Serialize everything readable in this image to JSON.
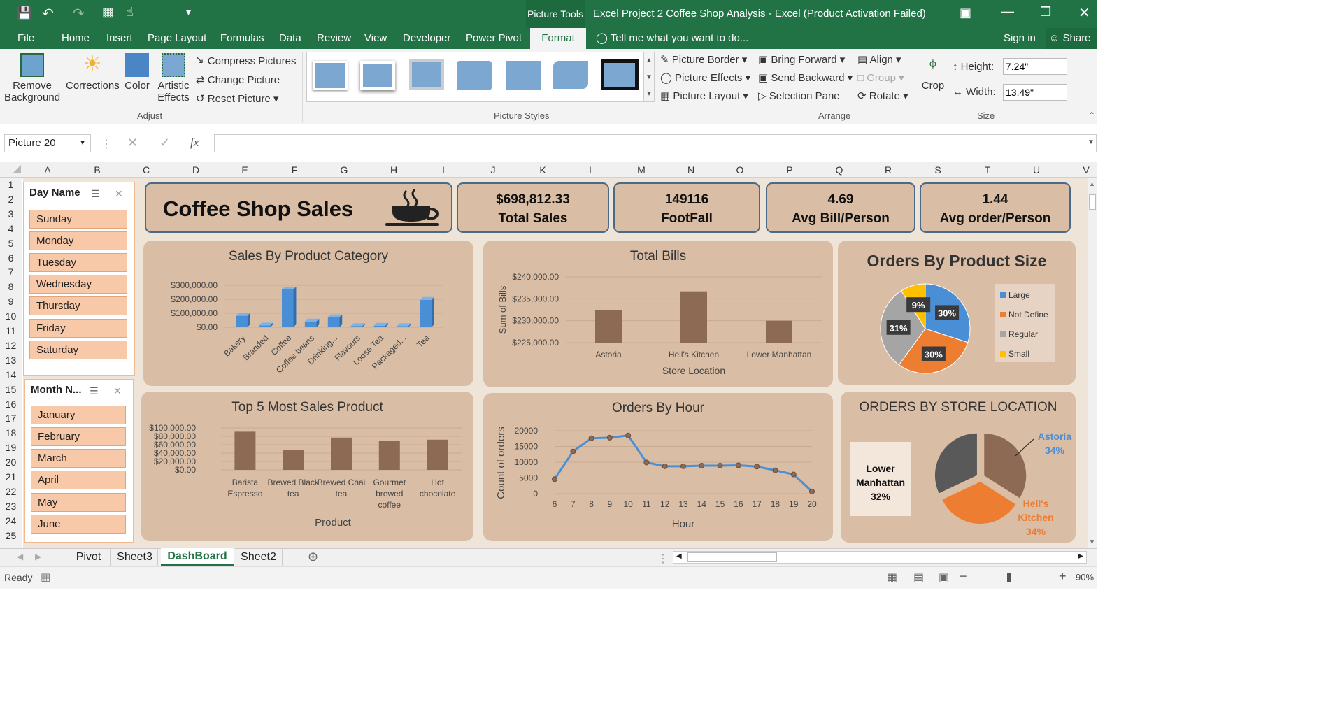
{
  "window": {
    "tool_context": "Picture Tools",
    "title": "Excel Project 2 Coffee Shop Analysis - Excel (Product Activation Failed)"
  },
  "menu": {
    "file": "File",
    "home": "Home",
    "insert": "Insert",
    "page_layout": "Page Layout",
    "formulas": "Formulas",
    "data": "Data",
    "review": "Review",
    "view": "View",
    "developer": "Developer",
    "power_pivot": "Power Pivot",
    "format": "Format",
    "tell_me": "Tell me what you want to do...",
    "sign_in": "Sign in",
    "share": "Share"
  },
  "ribbon": {
    "remove_bg": [
      "Remove",
      "Background"
    ],
    "corrections": "Corrections",
    "color": "Color",
    "artistic": [
      "Artistic",
      "Effects"
    ],
    "compress": "Compress Pictures",
    "change": "Change Picture",
    "reset": "Reset Picture",
    "adjust": "Adjust",
    "picture_styles": "Picture Styles",
    "picture_border": "Picture Border",
    "picture_effects": "Picture Effects",
    "picture_layout": "Picture Layout",
    "bring_forward": "Bring Forward",
    "send_backward": "Send Backward",
    "selection_pane": "Selection Pane",
    "align": "Align",
    "group": "Group",
    "rotate": "Rotate",
    "arrange": "Arrange",
    "crop": "Crop",
    "height_label": "Height:",
    "height_value": "7.24\"",
    "width_label": "Width:",
    "width_value": "13.49\"",
    "size": "Size"
  },
  "formula_bar": {
    "name_box": "Picture 20",
    "fx": "fx",
    "formula": ""
  },
  "columns": [
    "A",
    "B",
    "C",
    "D",
    "E",
    "F",
    "G",
    "H",
    "I",
    "J",
    "K",
    "L",
    "M",
    "N",
    "O",
    "P",
    "Q",
    "R",
    "S",
    "T",
    "U",
    "V"
  ],
  "rows": [
    "1",
    "2",
    "3",
    "4",
    "5",
    "6",
    "7",
    "8",
    "9",
    "10",
    "11",
    "12",
    "13",
    "14",
    "15",
    "16",
    "17",
    "18",
    "19",
    "20",
    "21",
    "22",
    "23",
    "24",
    "25"
  ],
  "slicers": {
    "day": {
      "title": "Day Name",
      "items": [
        "Sunday",
        "Monday",
        "Tuesday",
        "Wednesday",
        "Thursday",
        "Friday",
        "Saturday"
      ]
    },
    "month": {
      "title": "Month N...",
      "items": [
        "January",
        "February",
        "March",
        "April",
        "May",
        "June"
      ]
    }
  },
  "header_card": {
    "title": "Coffee Shop Sales",
    "icon": "coffee-cup-icon"
  },
  "kpis": [
    {
      "value": "$698,812.33",
      "label": "Total Sales"
    },
    {
      "value": "149116",
      "label": "FootFall"
    },
    {
      "value": "4.69",
      "label": "Avg Bill/Person"
    },
    {
      "value": "1.44",
      "label": "Avg order/Person"
    }
  ],
  "colors": {
    "panel": "#d9bda4",
    "brown_bar": "#8c6a54",
    "blue": "#4a8fd6",
    "orange": "#ed7d31",
    "gray": "#a5a5a5",
    "yellow": "#ffc000",
    "excel_green": "#217346"
  },
  "chart_data": [
    {
      "type": "bar",
      "title": "Sales By Product Category",
      "categories": [
        "Bakery",
        "Branded",
        "Coffee",
        "Coffee beans",
        "Drinking...",
        "Flavours",
        "Loose Tea",
        "Packaged...",
        "Tea"
      ],
      "values": [
        82000,
        13000,
        270000,
        41000,
        72000,
        9000,
        11000,
        8000,
        196000
      ],
      "yticks": [
        "$0.00",
        "$100,000.00",
        "$200,000.00",
        "$300,000.00"
      ],
      "ylim": [
        0,
        300000
      ]
    },
    {
      "type": "bar",
      "title": "Total Bills",
      "categories": [
        "Astoria",
        "Hell's Kitchen",
        "Lower Manhattan"
      ],
      "values": [
        232500,
        236700,
        230000
      ],
      "xlabel": "Store Location",
      "ylabel": "Sum of Bills",
      "yticks": [
        "$225,000.00",
        "$230,000.00",
        "$235,000.00",
        "$240,000.00"
      ],
      "ylim": [
        225000,
        240000
      ]
    },
    {
      "type": "pie",
      "title": "Orders By Product Size",
      "labels": [
        "Large",
        "Not Define",
        "Regular",
        "Small"
      ],
      "values": [
        30,
        30,
        31,
        9
      ],
      "data_labels": [
        "30%",
        "30%",
        "31%",
        "9%"
      ],
      "legend": "right"
    },
    {
      "type": "bar",
      "title": "Top 5 Most Sales Product",
      "categories": [
        "Barista Espresso",
        "Brewed Black tea",
        "Brewed Chai tea",
        "Gourmet brewed coffee",
        "Hot chocolate"
      ],
      "values": [
        91000,
        47000,
        77000,
        70000,
        72000
      ],
      "xlabel": "Product",
      "yticks": [
        "$0.00",
        "$20,000.00",
        "$40,000.00",
        "$60,000.00",
        "$80,000.00",
        "$100,000.00"
      ],
      "ylim": [
        0,
        100000
      ]
    },
    {
      "type": "line",
      "title": "Orders By Hour",
      "x": [
        6,
        7,
        8,
        9,
        10,
        11,
        12,
        13,
        14,
        15,
        16,
        17,
        18,
        19,
        20
      ],
      "values": [
        4600,
        13400,
        17600,
        17800,
        18500,
        9900,
        8700,
        8700,
        8900,
        8900,
        9000,
        8600,
        7400,
        6100,
        700
      ],
      "xlabel": "Hour",
      "ylabel": "Count of orders",
      "yticks": [
        "0",
        "5000",
        "10000",
        "15000",
        "20000"
      ],
      "ylim": [
        0,
        20000
      ]
    },
    {
      "type": "pie",
      "title": "ORDERS BY STORE LOCATION",
      "labels": [
        "Astoria",
        "Hell's Kitchen",
        "Lower Manhattan"
      ],
      "values": [
        34,
        34,
        32
      ],
      "data_labels": [
        "Astoria 34%",
        "Hell's Kitchen 34%",
        "Lower Manhattan 32%"
      ]
    }
  ],
  "sheet_tabs": [
    "Pivot",
    "Sheet3",
    "DashBoard",
    "Sheet2"
  ],
  "status": {
    "ready": "Ready",
    "zoom": "90%"
  }
}
